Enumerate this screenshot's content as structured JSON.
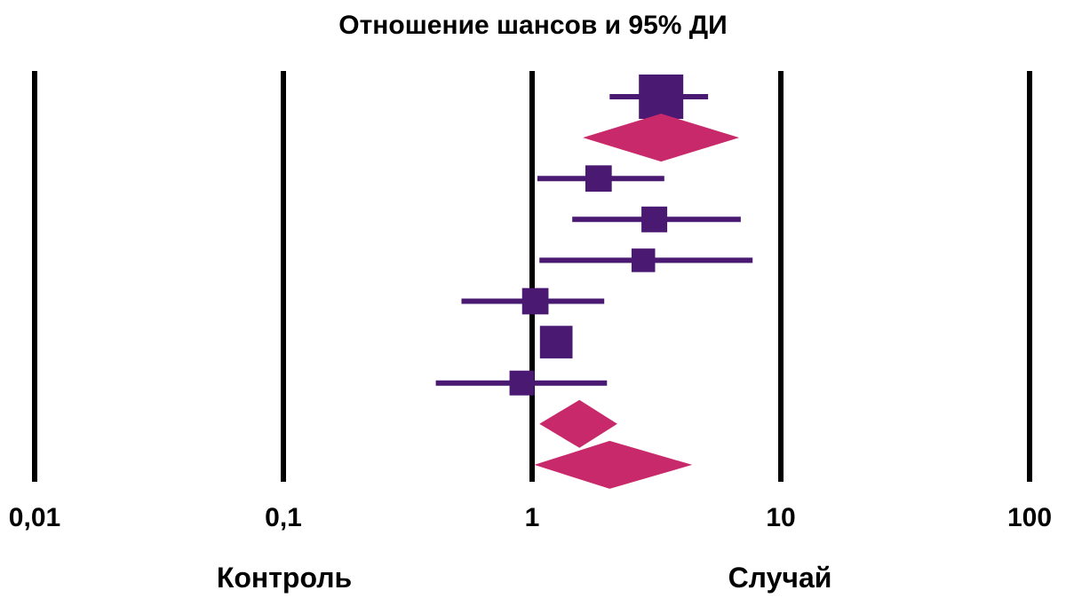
{
  "chart_data": {
    "type": "forest",
    "title": "Отношение шансов и 95% ДИ",
    "x_scale": "log",
    "xlim": [
      0.01,
      100
    ],
    "x_ticks": [
      0.01,
      0.1,
      1,
      10,
      100
    ],
    "x_tick_labels": [
      "0,01",
      "0,1",
      "1",
      "10",
      "100"
    ],
    "gridlines": [
      0.01,
      0.1,
      1,
      10,
      100
    ],
    "side_labels": {
      "left": "Контроль",
      "right": "Случай"
    },
    "colors": {
      "study": "#4a1a72",
      "pooled": "#c8296a",
      "grid": "#000000"
    },
    "rows": [
      {
        "kind": "study",
        "or": 3.3,
        "lower": 2.05,
        "upper": 5.1,
        "marker_weight": 1.0
      },
      {
        "kind": "pooled",
        "or": 3.3,
        "lower": 1.6,
        "upper": 6.8
      },
      {
        "kind": "study",
        "or": 1.85,
        "lower": 1.05,
        "upper": 3.4,
        "marker_weight": 0.42
      },
      {
        "kind": "study",
        "or": 3.1,
        "lower": 1.45,
        "upper": 6.9,
        "marker_weight": 0.4
      },
      {
        "kind": "study",
        "or": 2.8,
        "lower": 1.07,
        "upper": 7.7,
        "marker_weight": 0.33
      },
      {
        "kind": "study",
        "or": 1.03,
        "lower": 0.52,
        "upper": 1.95,
        "marker_weight": 0.42
      },
      {
        "kind": "study",
        "or": 1.25,
        "lower": 1.1,
        "upper": 1.4,
        "marker_weight": 0.62
      },
      {
        "kind": "study",
        "or": 0.91,
        "lower": 0.41,
        "upper": 2.0,
        "marker_weight": 0.37
      },
      {
        "kind": "pooled",
        "or": 1.55,
        "lower": 1.07,
        "upper": 2.2
      },
      {
        "kind": "pooled",
        "or": 2.05,
        "lower": 1.02,
        "upper": 4.4
      }
    ]
  }
}
